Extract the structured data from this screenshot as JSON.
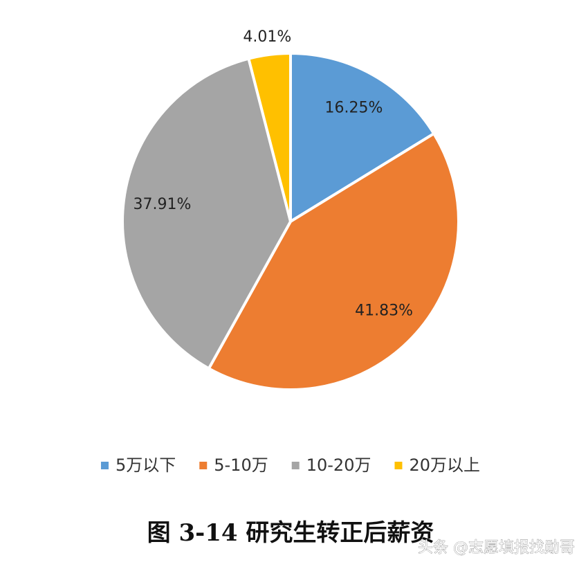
{
  "chart_data": {
    "type": "pie",
    "title": "图 3-14 研究生转正后薪资",
    "categories": [
      "5万以下",
      "5-10万",
      "10-20万",
      "20万以上"
    ],
    "values": [
      16.25,
      41.83,
      37.91,
      4.01
    ],
    "value_labels": [
      "16.25%",
      "41.83%",
      "37.91%",
      "4.01%"
    ],
    "colors": [
      "#5b9bd5",
      "#ed7d31",
      "#a5a5a5",
      "#ffc000"
    ],
    "legend": "bottom",
    "watermark": "头条 @志愿填报找勋哥"
  }
}
